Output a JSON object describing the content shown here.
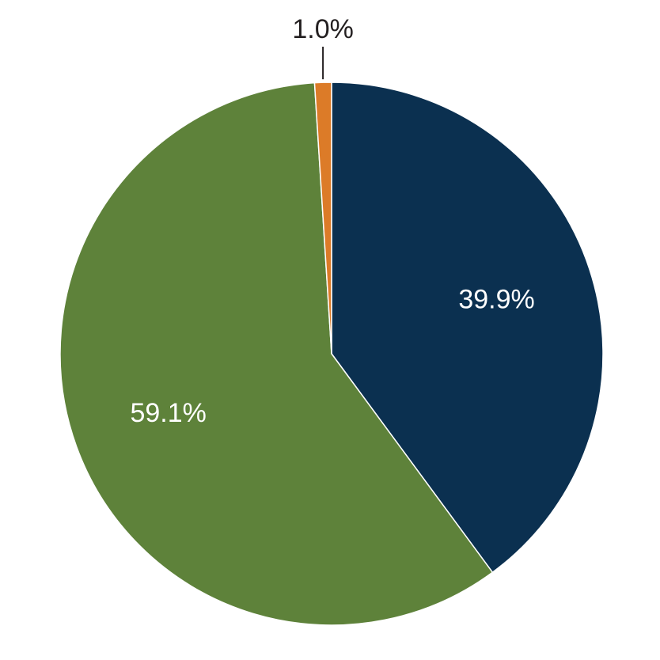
{
  "chart_data": {
    "type": "pie",
    "start_angle_deg": 0,
    "direction": "clockwise",
    "legend": "none",
    "slices": [
      {
        "label": "39.9%",
        "value": 39.9,
        "color": "#0b3050",
        "label_color": "#ffffff",
        "label_placement": "inside"
      },
      {
        "label": "59.1%",
        "value": 59.1,
        "color": "#5e823a",
        "label_color": "#ffffff",
        "label_placement": "inside"
      },
      {
        "label": "1.0%",
        "value": 1.0,
        "color": "#dc7b28",
        "label_color": "#231f20",
        "label_placement": "outside"
      }
    ]
  }
}
